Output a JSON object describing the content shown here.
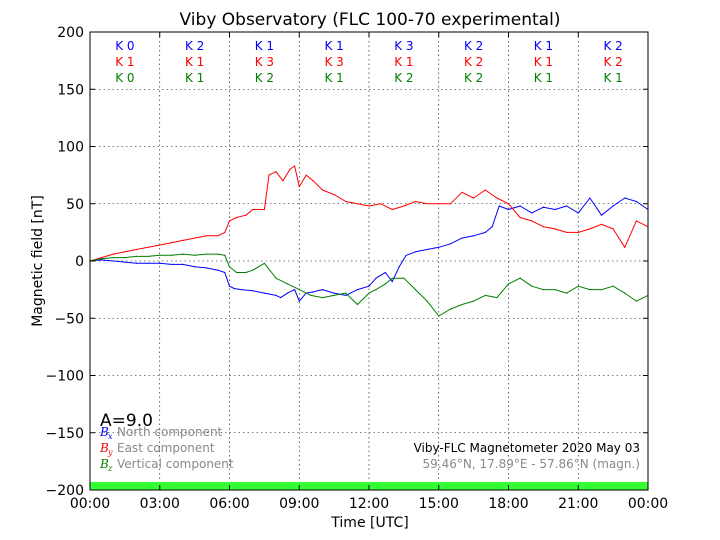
{
  "chart_data": {
    "type": "line",
    "title": "Viby Observatory (FLC 100-70 experimental)",
    "xlabel": "Time [UTC]",
    "ylabel": "Magnetic field [nT]",
    "xlim": [
      0,
      24
    ],
    "ylim": [
      -200,
      200
    ],
    "x_tick_labels": [
      "00:00",
      "03:00",
      "06:00",
      "09:00",
      "12:00",
      "15:00",
      "18:00",
      "21:00",
      "00:00"
    ],
    "y_tick_labels": [
      "200",
      "150",
      "100",
      "50",
      "0",
      "−50",
      "−100",
      "−150",
      "−200"
    ],
    "grid": true,
    "series": [
      {
        "name": "North component",
        "symbol": "B",
        "subscript": "x",
        "color": "#0000ff",
        "x": [
          0,
          0.5,
          1,
          1.5,
          2,
          2.5,
          3,
          3.5,
          4,
          4.5,
          5,
          5.5,
          5.8,
          6,
          6.2,
          6.5,
          7,
          7.5,
          8,
          8.2,
          8.5,
          8.8,
          9,
          9.3,
          9.6,
          10,
          10.5,
          11,
          11.5,
          12,
          12.3,
          12.7,
          13,
          13.3,
          13.6,
          14,
          14.5,
          15,
          15.5,
          16,
          16.5,
          17,
          17.3,
          17.6,
          18,
          18.5,
          19,
          19.5,
          20,
          20.5,
          21,
          21.5,
          22,
          22.5,
          23,
          23.5,
          24
        ],
        "values": [
          0,
          1,
          0,
          -1,
          -2,
          -2,
          -2,
          -3,
          -3,
          -5,
          -6,
          -8,
          -10,
          -22,
          -24,
          -25,
          -26,
          -28,
          -30,
          -32,
          -28,
          -25,
          -35,
          -28,
          -27,
          -25,
          -28,
          -30,
          -25,
          -22,
          -15,
          -10,
          -18,
          -5,
          5,
          8,
          10,
          12,
          15,
          20,
          22,
          25,
          30,
          48,
          45,
          48,
          42,
          47,
          45,
          48,
          42,
          55,
          40,
          48,
          55,
          52,
          45
        ]
      },
      {
        "name": "East component",
        "symbol": "B",
        "subscript": "y",
        "color": "#ff0000",
        "x": [
          0,
          0.5,
          1,
          1.5,
          2,
          2.5,
          3,
          3.5,
          4,
          4.5,
          5,
          5.5,
          5.8,
          6,
          6.3,
          6.7,
          7,
          7.5,
          7.7,
          8,
          8.3,
          8.6,
          8.8,
          9,
          9.3,
          9.6,
          10,
          10.5,
          11,
          11.5,
          12,
          12.5,
          13,
          13.5,
          14,
          14.5,
          15,
          15.5,
          16,
          16.5,
          17,
          17.5,
          18,
          18.5,
          19,
          19.5,
          20,
          20.5,
          21,
          21.5,
          22,
          22.5,
          23,
          23.5,
          24
        ],
        "values": [
          0,
          3,
          6,
          8,
          10,
          12,
          14,
          16,
          18,
          20,
          22,
          22,
          25,
          35,
          38,
          40,
          45,
          45,
          75,
          78,
          70,
          80,
          83,
          65,
          75,
          70,
          62,
          58,
          52,
          50,
          48,
          50,
          45,
          48,
          52,
          50,
          50,
          50,
          60,
          55,
          62,
          55,
          50,
          38,
          35,
          30,
          28,
          25,
          25,
          28,
          32,
          28,
          12,
          35,
          30
        ]
      },
      {
        "name": "Vertical component",
        "symbol": "B",
        "subscript": "z",
        "color": "#008000",
        "x": [
          0,
          0.5,
          1,
          1.5,
          2,
          2.5,
          3,
          3.5,
          4,
          4.5,
          5,
          5.5,
          5.8,
          6,
          6.3,
          6.7,
          7,
          7.5,
          8,
          8.5,
          9,
          9.5,
          10,
          10.5,
          11,
          11.5,
          12,
          12.3,
          12.7,
          13,
          13.5,
          14,
          14.5,
          15,
          15.5,
          16,
          16.5,
          17,
          17.5,
          18,
          18.5,
          19,
          19.5,
          20,
          20.5,
          21,
          21.5,
          22,
          22.5,
          23,
          23.5,
          24
        ],
        "values": [
          0,
          2,
          3,
          3,
          4,
          4,
          5,
          5,
          6,
          5,
          6,
          6,
          5,
          -5,
          -10,
          -10,
          -8,
          -2,
          -15,
          -20,
          -25,
          -30,
          -32,
          -30,
          -28,
          -38,
          -28,
          -25,
          -20,
          -15,
          -15,
          -25,
          -35,
          -48,
          -42,
          -38,
          -35,
          -30,
          -32,
          -20,
          -15,
          -22,
          -25,
          -25,
          -28,
          -22,
          -25,
          -25,
          -22,
          -28,
          -35,
          -30
        ]
      }
    ],
    "k_indices": {
      "rows": [
        {
          "color": "#0000ff",
          "values": [
            "K 0",
            "K 2",
            "K 1",
            "K 1",
            "K 3",
            "K 2",
            "K 1",
            "K 2"
          ]
        },
        {
          "color": "#ff0000",
          "values": [
            "K 1",
            "K 1",
            "K 3",
            "K 3",
            "K 1",
            "K 2",
            "K 1",
            "K 2"
          ]
        },
        {
          "color": "#008000",
          "values": [
            "K 0",
            "K 1",
            "K 2",
            "K 1",
            "K 2",
            "K 2",
            "K 1",
            "K 1"
          ]
        }
      ]
    },
    "a_index": "A=9.0",
    "annotation_line1": "Viby-FLC Magnetometer 2020 May 03",
    "annotation_line2": "59.46°N, 17.89°E - 57.86°N (magn.)",
    "status_bar_color": "#33ff33",
    "legend_placement": "bottom-left"
  }
}
